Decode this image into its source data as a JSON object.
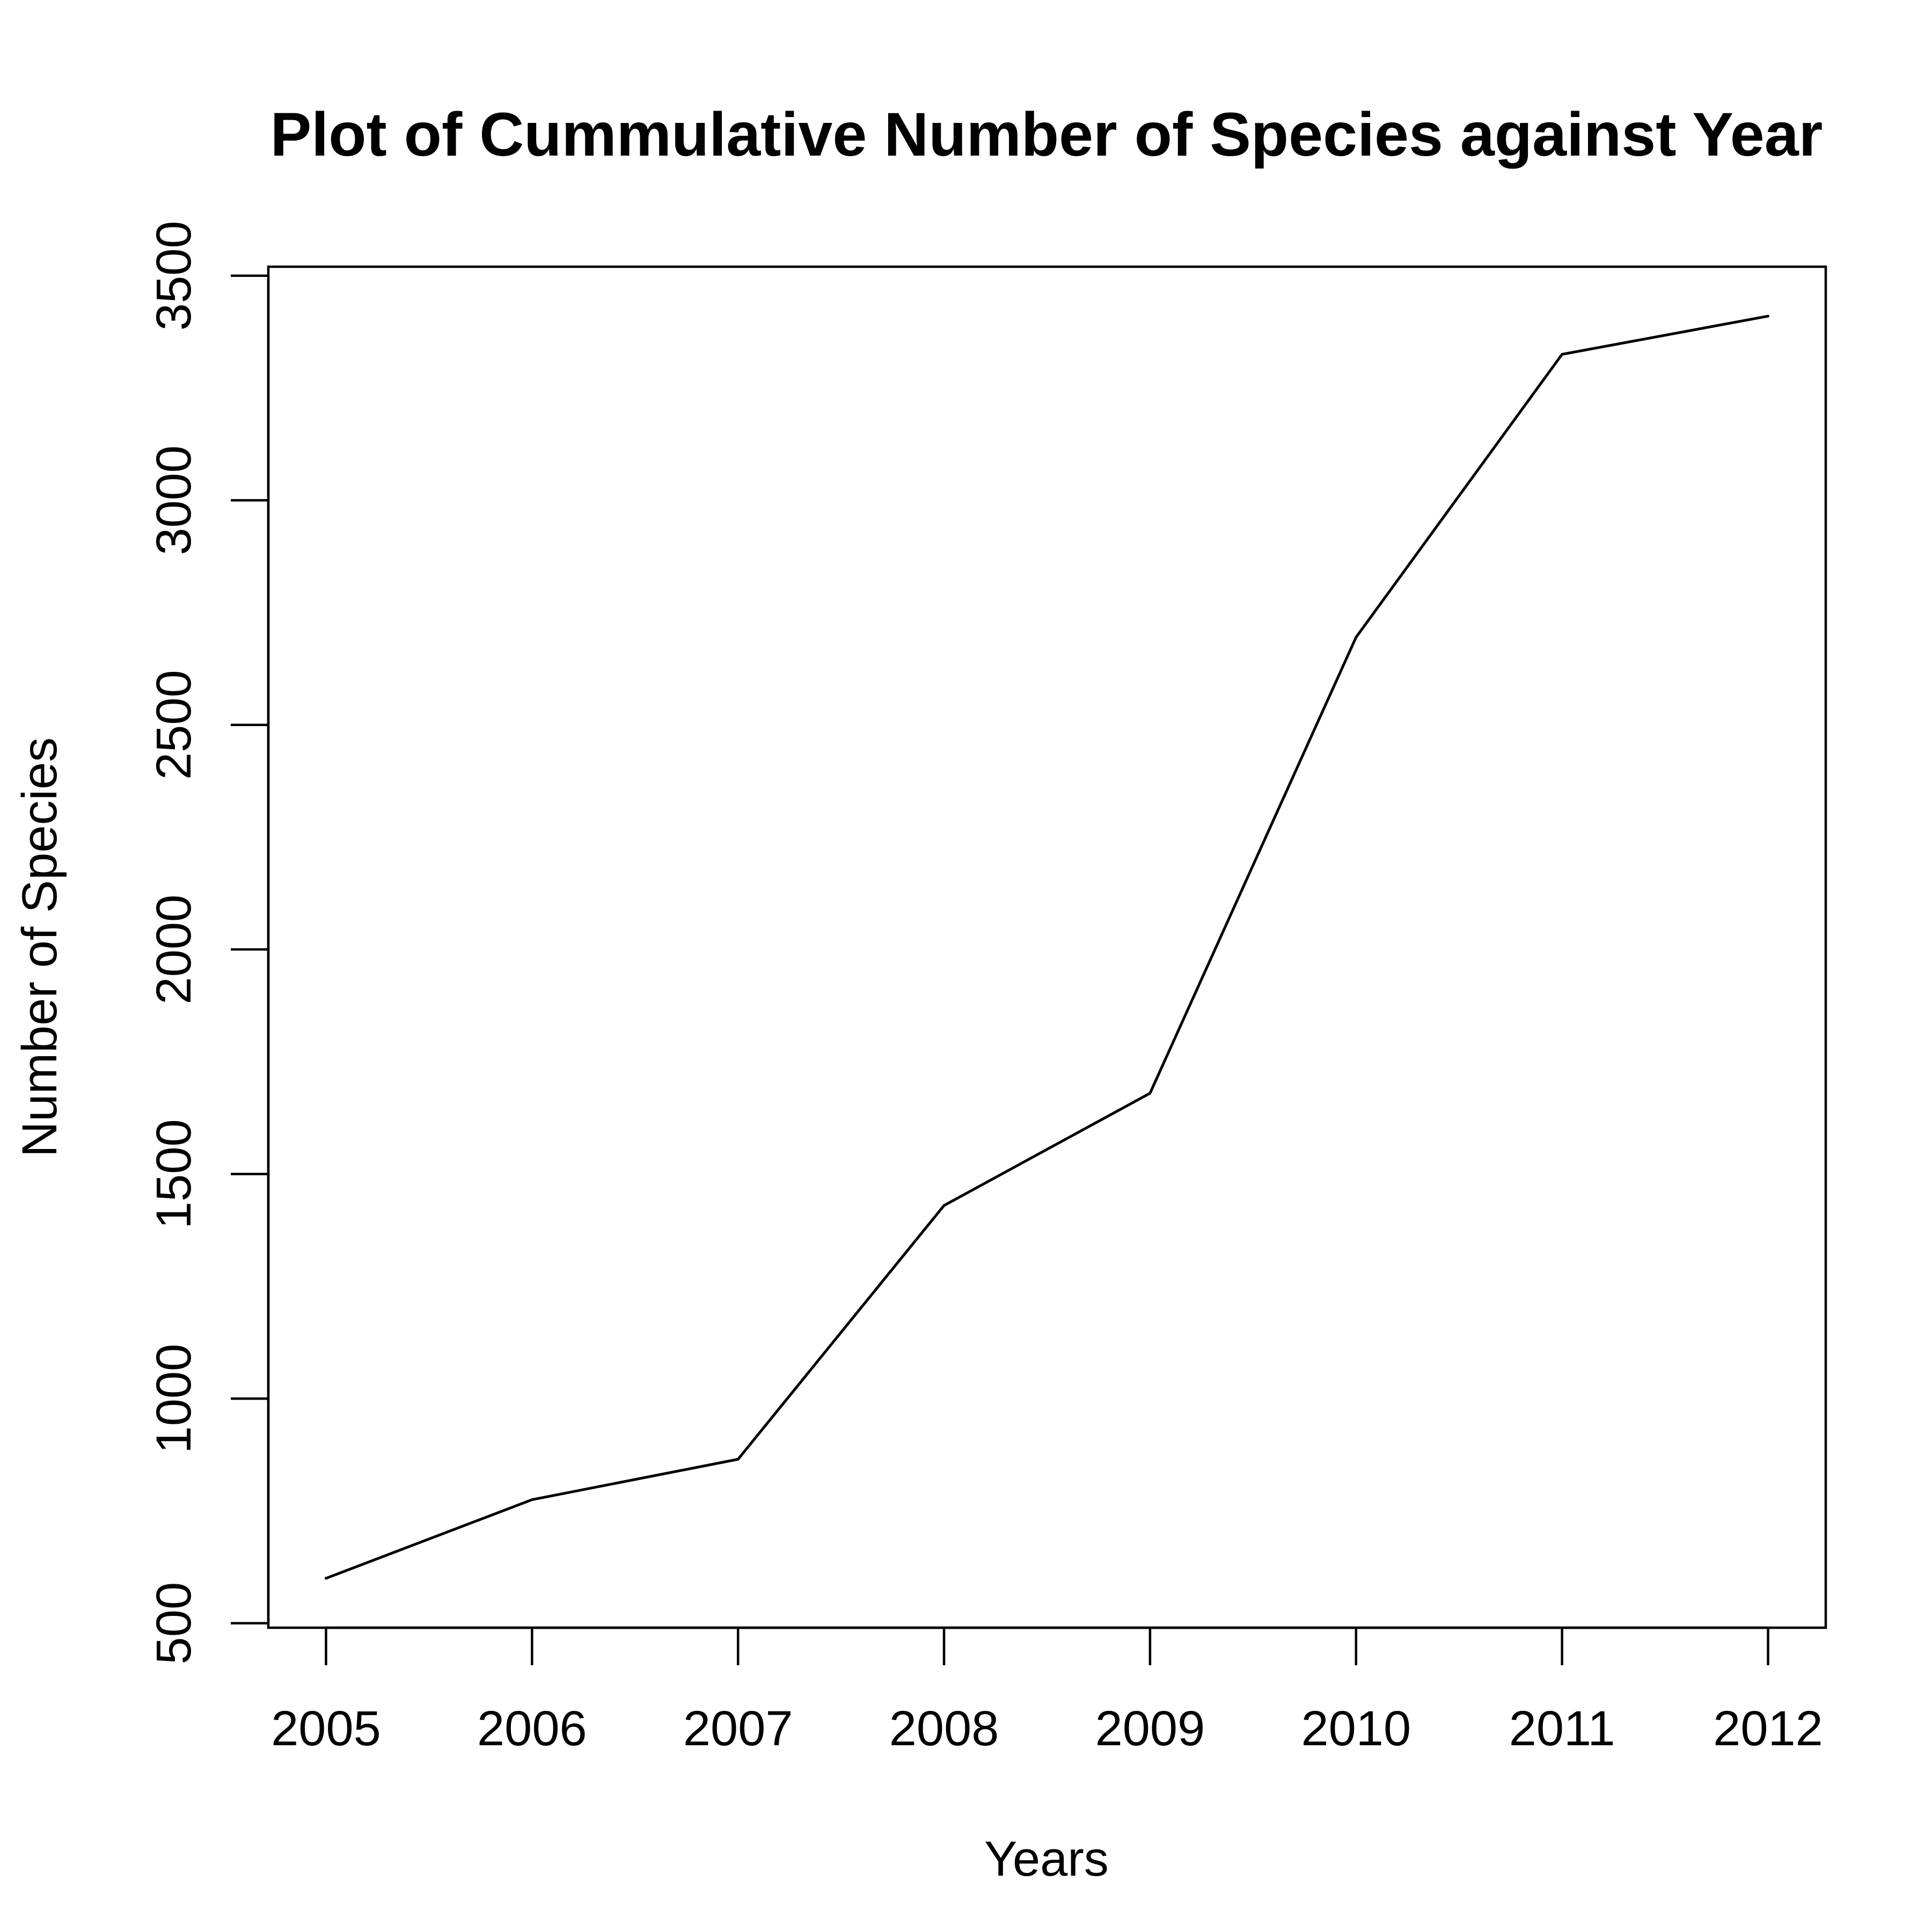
{
  "chart_data": {
    "type": "line",
    "title": "Plot of Cummulative Number of Species against Year",
    "xlabel": "Years",
    "ylabel": "Number of Species",
    "x": [
      2005,
      2006,
      2007,
      2008,
      2009,
      2010,
      2011,
      2012
    ],
    "xticks": [
      "2005",
      "2006",
      "2007",
      "2008",
      "2009",
      "2010",
      "2011",
      "2012"
    ],
    "yticks": [
      "500",
      "1000",
      "1500",
      "2000",
      "2500",
      "3000",
      "3500"
    ],
    "xlim": [
      2004.72,
      2012.28
    ],
    "ylim": [
      490,
      3520
    ],
    "series": [
      {
        "values": [
          600,
          775,
          865,
          1430,
          1680,
          2695,
          3325,
          3410
        ],
        "color": "#000000"
      }
    ],
    "grid": false,
    "legend": "none"
  }
}
